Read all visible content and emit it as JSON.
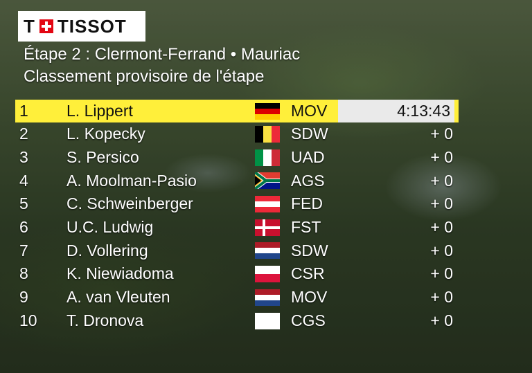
{
  "brand": {
    "logo_text": "TISSOT"
  },
  "header": {
    "title": "Étape 2 : Clermont-Ferrand • Mauriac",
    "subtitle": "Classement provisoire de l'étape"
  },
  "colors": {
    "leader_highlight": "#ffef3a",
    "leader_time_bg": "#eaeaea",
    "logo_red": "#e30613"
  },
  "standings": [
    {
      "pos": "1",
      "name": "L. Lippert",
      "flag": "germany",
      "team": "MOV",
      "time": "4:13:43"
    },
    {
      "pos": "2",
      "name": "L. Kopecky",
      "flag": "belgium",
      "team": "SDW",
      "time": "+ 0"
    },
    {
      "pos": "3",
      "name": "S. Persico",
      "flag": "italy",
      "team": "UAD",
      "time": "+ 0"
    },
    {
      "pos": "4",
      "name": "A. Moolman-Pasio",
      "flag": "south-africa",
      "team": "AGS",
      "time": "+ 0"
    },
    {
      "pos": "5",
      "name": "C. Schweinberger",
      "flag": "austria",
      "team": "FED",
      "time": "+ 0"
    },
    {
      "pos": "6",
      "name": "U.C. Ludwig",
      "flag": "denmark",
      "team": "FST",
      "time": "+ 0"
    },
    {
      "pos": "7",
      "name": "D. Vollering",
      "flag": "netherlands",
      "team": "SDW",
      "time": "+ 0"
    },
    {
      "pos": "8",
      "name": "K. Niewiadoma",
      "flag": "poland",
      "team": "CSR",
      "time": "+ 0"
    },
    {
      "pos": "9",
      "name": "A. van Vleuten",
      "flag": "netherlands",
      "team": "MOV",
      "time": "+ 0"
    },
    {
      "pos": "10",
      "name": "T. Dronova",
      "flag": "blank",
      "team": "CGS",
      "time": "+ 0"
    }
  ]
}
